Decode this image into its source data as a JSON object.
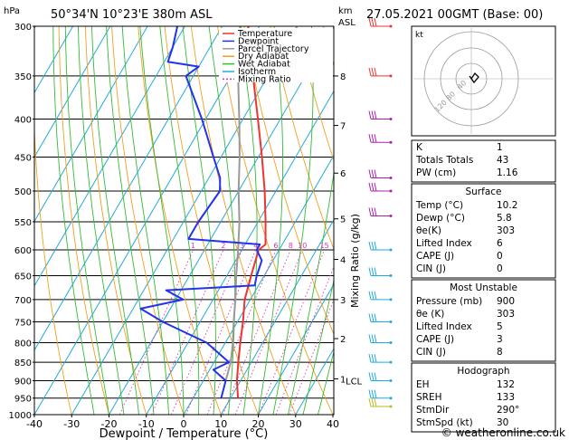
{
  "header": {
    "location": "50°34'N  10°23'E  380m  ASL",
    "datetime": "27.05.2021  00GMT  (Base: 00)"
  },
  "y_axis_left": {
    "unit": "hPa"
  },
  "y_axis_right": {
    "unit": "km",
    "sub": "ASL",
    "mixing_label": "Mixing Ratio (g/kg)"
  },
  "x_axis": {
    "label": "Dewpoint / Temperature (°C)"
  },
  "legend": [
    {
      "label": "Temperature",
      "color": "#ee3333",
      "dash": ""
    },
    {
      "label": "Dewpoint",
      "color": "#2233ee",
      "dash": ""
    },
    {
      "label": "Parcel Trajectory",
      "color": "#999999",
      "dash": ""
    },
    {
      "label": "Dry Adiabat",
      "color": "#f0a020",
      "dash": ""
    },
    {
      "label": "Wet Adiabat",
      "color": "#33bb33",
      "dash": ""
    },
    {
      "label": "Isotherm",
      "color": "#22aadd",
      "dash": ""
    },
    {
      "label": "Mixing Ratio",
      "color": "#dd33bb",
      "dash": "2,2"
    }
  ],
  "chart_data": {
    "type": "skew-t",
    "pressure_levels": [
      300,
      350,
      400,
      450,
      500,
      550,
      600,
      650,
      700,
      750,
      800,
      850,
      900,
      950,
      1000
    ],
    "temp_ticks": [
      -40,
      -30,
      -20,
      -10,
      0,
      10,
      20,
      30,
      40
    ],
    "temperature": [
      [
        950,
        12
      ],
      [
        900,
        9
      ],
      [
        850,
        6.5
      ],
      [
        800,
        4
      ],
      [
        750,
        1.5
      ],
      [
        700,
        -1.5
      ],
      [
        650,
        -3.5
      ],
      [
        600,
        -5.5
      ],
      [
        590,
        -4.5
      ],
      [
        550,
        -8
      ],
      [
        500,
        -13
      ],
      [
        450,
        -19
      ],
      [
        400,
        -26
      ],
      [
        350,
        -34
      ],
      [
        300,
        -43
      ]
    ],
    "dewpoint": [
      [
        950,
        7.5
      ],
      [
        900,
        6
      ],
      [
        870,
        1
      ],
      [
        850,
        4
      ],
      [
        800,
        -5
      ],
      [
        750,
        -20
      ],
      [
        720,
        -28
      ],
      [
        700,
        -18
      ],
      [
        680,
        -24
      ],
      [
        670,
        -1
      ],
      [
        650,
        -2
      ],
      [
        620,
        -3
      ],
      [
        600,
        -6
      ],
      [
        590,
        -6
      ],
      [
        580,
        -26
      ],
      [
        550,
        -26
      ],
      [
        500,
        -25
      ],
      [
        480,
        -27
      ],
      [
        450,
        -32
      ],
      [
        400,
        -41
      ],
      [
        350,
        -52
      ],
      [
        340,
        -50
      ],
      [
        335,
        -59
      ],
      [
        320,
        -60
      ],
      [
        300,
        -62
      ]
    ],
    "parcel": [
      [
        900,
        6
      ],
      [
        850,
        4.5
      ],
      [
        800,
        2
      ],
      [
        750,
        -1
      ],
      [
        700,
        -4
      ],
      [
        650,
        -7.5
      ],
      [
        600,
        -11
      ],
      [
        550,
        -15
      ],
      [
        500,
        -20
      ],
      [
        450,
        -25
      ],
      [
        400,
        -31
      ],
      [
        350,
        -38
      ],
      [
        300,
        -45
      ]
    ],
    "mixing_ratios": [
      "1",
      "2",
      "3",
      "4",
      "6",
      "8",
      "10",
      "15",
      "20",
      "25"
    ],
    "height_ticks": [
      {
        "label": "8",
        "p": 350
      },
      {
        "label": "7",
        "p": 408
      },
      {
        "label": "6",
        "p": 473
      },
      {
        "label": "5",
        "p": 545
      },
      {
        "label": "4",
        "p": 618
      },
      {
        "label": "3",
        "p": 700
      },
      {
        "label": "2",
        "p": 790
      },
      {
        "label": "1",
        "p": 895
      }
    ],
    "lcl": {
      "label": "LCL",
      "p": 900
    },
    "hodograph": {
      "unit_label": "kt",
      "ring_labels": [
        "40",
        "80",
        "120"
      ]
    }
  },
  "wind_barbs": [
    {
      "p": 300,
      "color": "#ee3333"
    },
    {
      "p": 350,
      "color": "#ee3333"
    },
    {
      "p": 400,
      "color": "#aa22aa"
    },
    {
      "p": 430,
      "color": "#aa22aa"
    },
    {
      "p": 480,
      "color": "#aa22aa"
    },
    {
      "p": 500,
      "color": "#aa22aa"
    },
    {
      "p": 540,
      "color": "#aa22aa"
    },
    {
      "p": 600,
      "color": "#22aadd"
    },
    {
      "p": 650,
      "color": "#22aadd"
    },
    {
      "p": 700,
      "color": "#22aadd"
    },
    {
      "p": 750,
      "color": "#22aadd"
    },
    {
      "p": 800,
      "color": "#22aadd"
    },
    {
      "p": 850,
      "color": "#22aadd"
    },
    {
      "p": 900,
      "color": "#22aadd"
    },
    {
      "p": 950,
      "color": "#22aadd"
    },
    {
      "p": 975,
      "color": "#bbbb22"
    }
  ],
  "indices": {
    "rows": [
      {
        "label": "K",
        "value": "1"
      },
      {
        "label": "Totals Totals",
        "value": "43"
      },
      {
        "label": "PW (cm)",
        "value": "1.16"
      }
    ]
  },
  "surface": {
    "title": "Surface",
    "rows": [
      {
        "label": "Temp (°C)",
        "value": "10.2"
      },
      {
        "label": "Dewp (°C)",
        "value": "5.8"
      },
      {
        "label": "θe(K)",
        "value": "303"
      },
      {
        "label": "Lifted Index",
        "value": "6"
      },
      {
        "label": "CAPE (J)",
        "value": "0"
      },
      {
        "label": "CIN (J)",
        "value": "0"
      }
    ]
  },
  "most_unstable": {
    "title": "Most Unstable",
    "rows": [
      {
        "label": "Pressure (mb)",
        "value": "900"
      },
      {
        "label": "θe (K)",
        "value": "303"
      },
      {
        "label": "Lifted Index",
        "value": "5"
      },
      {
        "label": "CAPE (J)",
        "value": "3"
      },
      {
        "label": "CIN (J)",
        "value": "8"
      }
    ]
  },
  "hodograph_table": {
    "title": "Hodograph",
    "rows": [
      {
        "label": "EH",
        "value": "132"
      },
      {
        "label": "SREH",
        "value": "133"
      },
      {
        "label": "StmDir",
        "value": "290°"
      },
      {
        "label": "StmSpd (kt)",
        "value": "30"
      }
    ]
  },
  "footer": {
    "credit": "© weatheronline.co.uk"
  }
}
